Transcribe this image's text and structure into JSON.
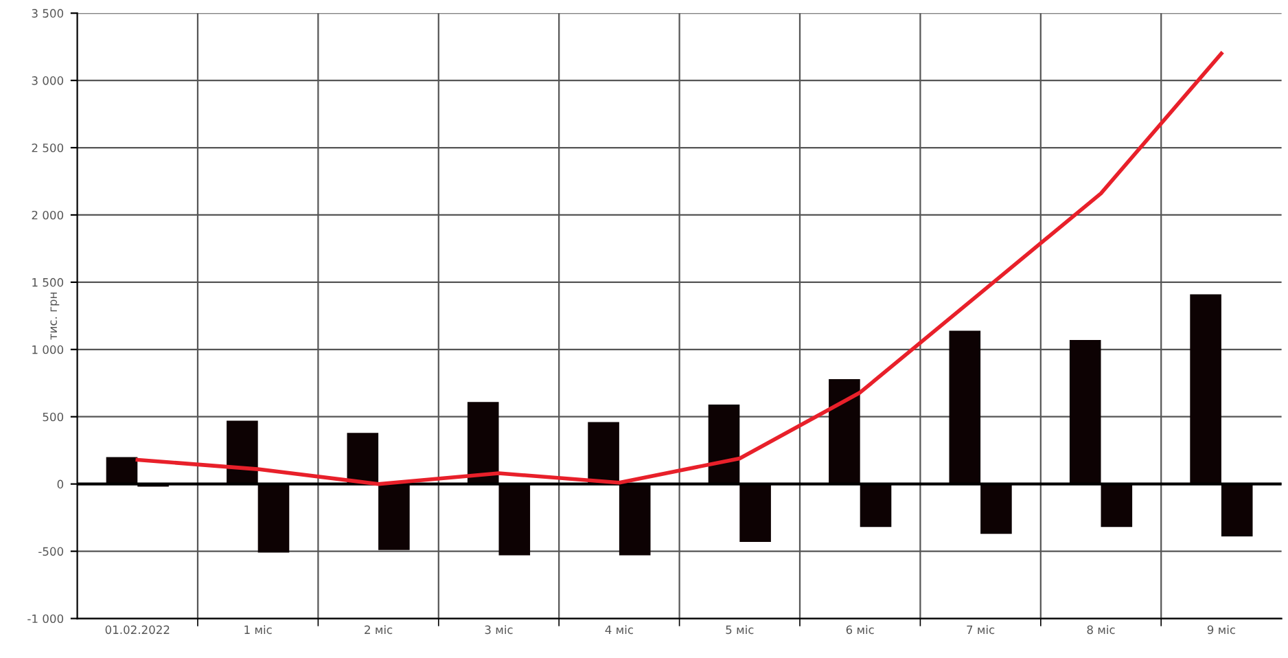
{
  "chart_data": {
    "type": "bar",
    "ylabel": "тис. грн",
    "categories": [
      "01.02.2022",
      "1 міс",
      "2 міс",
      "3 міс",
      "4 міс",
      "5 міс",
      "6 міс",
      "7 міс",
      "8 міс",
      "9 міс"
    ],
    "series": [
      {
        "color": "#0d0203",
        "values": [
          200,
          470,
          380,
          610,
          460,
          590,
          780,
          1140,
          1070,
          1410
        ]
      },
      {
        "color": "#0d0203",
        "values": [
          -20,
          -510,
          -490,
          -530,
          -530,
          -430,
          -320,
          -370,
          -320,
          -390
        ]
      },
      {
        "type": "line",
        "color": "#e8202a",
        "values": [
          180,
          110,
          0,
          80,
          10,
          190,
          680,
          1420,
          2160,
          3200
        ]
      }
    ],
    "ylim": [
      -1000,
      3500
    ],
    "yticks": [
      {
        "value": -1000,
        "label": "-1 000"
      },
      -500,
      0,
      500,
      {
        "value": 1000,
        "label": "1 000"
      },
      {
        "value": 1500,
        "label": "1 500"
      },
      {
        "value": 2000,
        "label": "2 000"
      },
      {
        "value": 2500,
        "label": "2 500"
      },
      {
        "value": 3000,
        "label": "3 000"
      },
      {
        "value": 3500,
        "label": "3 500"
      }
    ],
    "grid": true,
    "legend": false
  }
}
